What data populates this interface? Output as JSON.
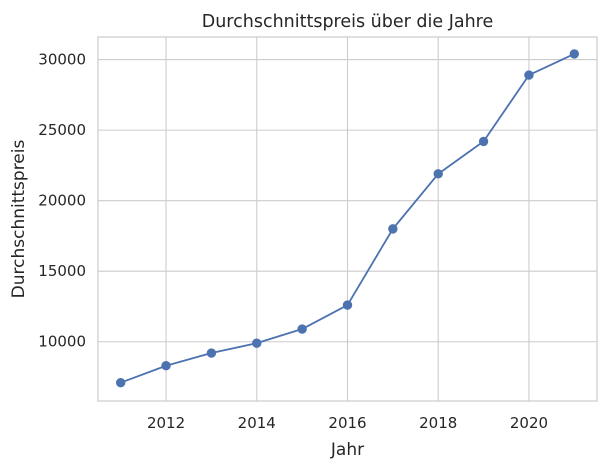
{
  "chart_data": {
    "type": "line",
    "title": "Durchschnittspreis über die Jahre",
    "xlabel": "Jahr",
    "ylabel": "Durchschnittspreis",
    "x": [
      2011,
      2012,
      2013,
      2014,
      2015,
      2016,
      2017,
      2018,
      2019,
      2020,
      2021
    ],
    "series": [
      {
        "values": [
          7100,
          8300,
          9200,
          9900,
          10900,
          12600,
          18000,
          21900,
          24200,
          28900,
          30400
        ],
        "color": "#4c72b0"
      }
    ],
    "xlim": [
      2010.5,
      2021.5
    ],
    "ylim": [
      5800,
      31600
    ],
    "xticks": [
      2012,
      2014,
      2016,
      2018,
      2020
    ],
    "yticks": [
      10000,
      15000,
      20000,
      25000,
      30000
    ],
    "grid": true,
    "marker": "circle"
  }
}
